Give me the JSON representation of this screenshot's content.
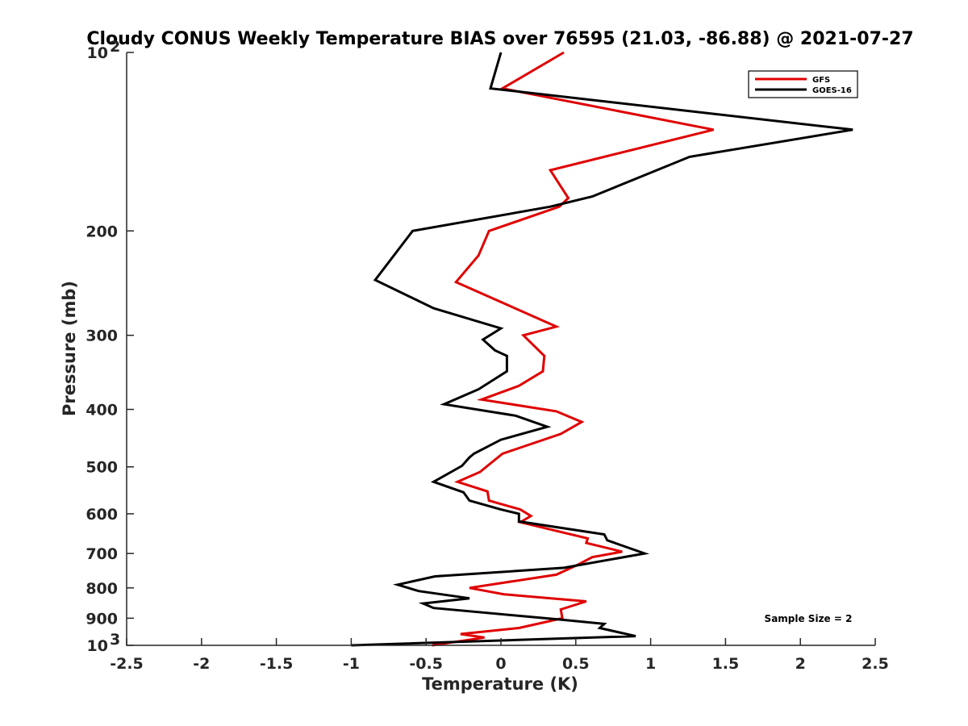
{
  "chart_data": {
    "type": "line",
    "title": "Cloudy CONUS Weekly Temperature BIAS over 76595 (21.03, -86.88) @ 2021-07-27",
    "xlabel": "Temperature (K)",
    "ylabel": "Pressure (mb)",
    "xlim": [
      -2.5,
      2.5
    ],
    "ylim": [
      100,
      1000
    ],
    "yscale": "log",
    "y_reversed": true,
    "grid": false,
    "legend_position": "top-right",
    "x_ticks": [
      "-2.5",
      "-2",
      "-1.5",
      "-1",
      "-0.5",
      "0",
      "0.5",
      "1",
      "1.5",
      "2",
      "2.5"
    ],
    "y_ticks": [
      {
        "value": 100,
        "label": "10",
        "sup": "2"
      },
      {
        "value": 200,
        "label": "200",
        "sup": ""
      },
      {
        "value": 300,
        "label": "300",
        "sup": ""
      },
      {
        "value": 400,
        "label": "400",
        "sup": ""
      },
      {
        "value": 500,
        "label": "500",
        "sup": ""
      },
      {
        "value": 600,
        "label": "600",
        "sup": ""
      },
      {
        "value": 700,
        "label": "700",
        "sup": ""
      },
      {
        "value": 800,
        "label": "800",
        "sup": ""
      },
      {
        "value": 900,
        "label": "900",
        "sup": ""
      },
      {
        "value": 1000,
        "label": "10",
        "sup": "3"
      }
    ],
    "annotation": "Sample Size = 2",
    "series": [
      {
        "name": "GFS",
        "color": "#e00000",
        "points": [
          [
            0.42,
            100
          ],
          [
            0.01,
            115
          ],
          [
            1.42,
            135
          ],
          [
            0.33,
            158
          ],
          [
            0.45,
            176
          ],
          [
            0.39,
            182
          ],
          [
            -0.08,
            200
          ],
          [
            -0.15,
            220
          ],
          [
            -0.3,
            244
          ],
          [
            0.37,
            290
          ],
          [
            0.15,
            300
          ],
          [
            0.29,
            325
          ],
          [
            0.28,
            345
          ],
          [
            0.12,
            365
          ],
          [
            -0.13,
            385
          ],
          [
            0.37,
            403
          ],
          [
            0.54,
            420
          ],
          [
            0.4,
            440
          ],
          [
            0.01,
            475
          ],
          [
            -0.09,
            498
          ],
          [
            -0.14,
            510
          ],
          [
            -0.29,
            530
          ],
          [
            -0.09,
            550
          ],
          [
            -0.08,
            570
          ],
          [
            0.13,
            590
          ],
          [
            0.2,
            605
          ],
          [
            0.13,
            620
          ],
          [
            0.58,
            660
          ],
          [
            0.57,
            672
          ],
          [
            0.81,
            695
          ],
          [
            0.61,
            710
          ],
          [
            0.52,
            730
          ],
          [
            0.37,
            760
          ],
          [
            -0.21,
            800
          ],
          [
            0.02,
            820
          ],
          [
            0.57,
            843
          ],
          [
            0.4,
            870
          ],
          [
            0.41,
            900
          ],
          [
            0.31,
            912
          ],
          [
            0.12,
            935
          ],
          [
            -0.27,
            957
          ],
          [
            -0.11,
            970
          ],
          [
            -0.46,
            1000
          ]
        ]
      },
      {
        "name": "GOES-16",
        "color": "#000000",
        "points": [
          [
            0.0,
            100
          ],
          [
            -0.07,
            115
          ],
          [
            2.35,
            135
          ],
          [
            1.26,
            150
          ],
          [
            0.61,
            175
          ],
          [
            0.33,
            182
          ],
          [
            -0.59,
            200
          ],
          [
            -0.84,
            242
          ],
          [
            -0.45,
            270
          ],
          [
            0.0,
            292
          ],
          [
            -0.12,
            305
          ],
          [
            -0.04,
            318
          ],
          [
            0.04,
            325
          ],
          [
            0.04,
            345
          ],
          [
            -0.15,
            370
          ],
          [
            -0.38,
            392
          ],
          [
            0.1,
            410
          ],
          [
            0.31,
            428
          ],
          [
            0.0,
            450
          ],
          [
            -0.18,
            475
          ],
          [
            -0.21,
            482
          ],
          [
            -0.26,
            498
          ],
          [
            -0.45,
            530
          ],
          [
            -0.25,
            552
          ],
          [
            -0.21,
            570
          ],
          [
            0.0,
            590
          ],
          [
            0.12,
            600
          ],
          [
            0.12,
            618
          ],
          [
            0.69,
            650
          ],
          [
            0.71,
            665
          ],
          [
            0.96,
            700
          ],
          [
            0.42,
            740
          ],
          [
            -0.44,
            765
          ],
          [
            -0.69,
            790
          ],
          [
            -0.55,
            810
          ],
          [
            -0.21,
            833
          ],
          [
            -0.52,
            850
          ],
          [
            -0.45,
            865
          ],
          [
            0.4,
            905
          ],
          [
            0.69,
            920
          ],
          [
            0.66,
            935
          ],
          [
            0.9,
            965
          ],
          [
            -1.0,
            1000
          ]
        ]
      }
    ]
  }
}
